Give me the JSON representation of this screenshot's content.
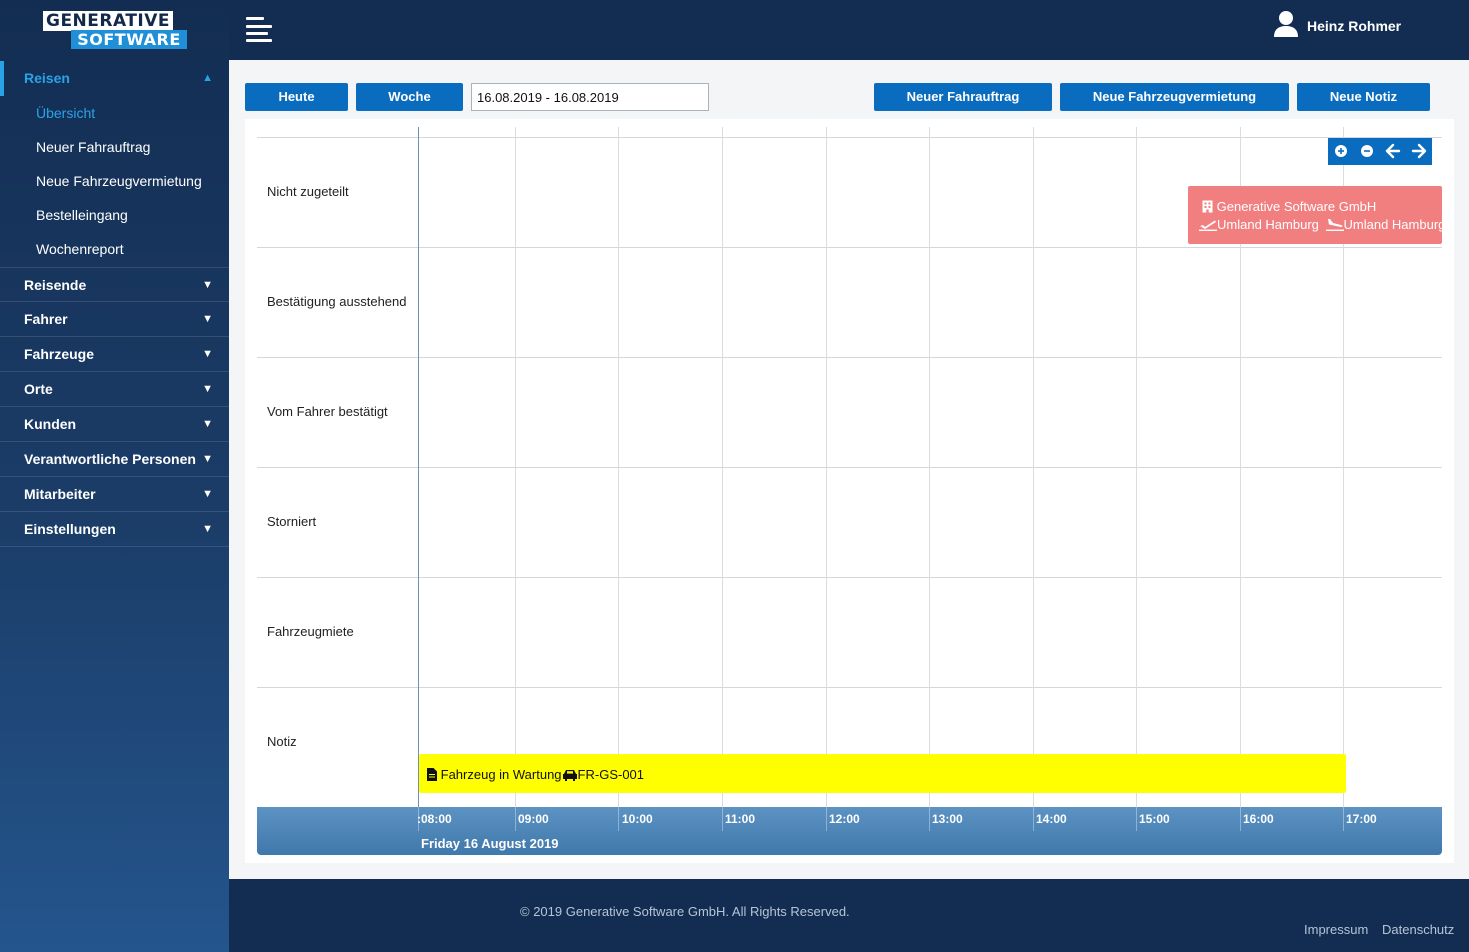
{
  "logo": {
    "line1": "GENERATIVE",
    "line2": "SOFTWARE"
  },
  "user": {
    "name": "Heinz Rohmer",
    "icon": "user-icon"
  },
  "sidebar": {
    "reisen": {
      "label": "Reisen",
      "expanded": true,
      "items": [
        {
          "label": "Übersicht",
          "active": true
        },
        {
          "label": "Neuer Fahrauftrag"
        },
        {
          "label": "Neue Fahrzeugvermietung"
        },
        {
          "label": "Bestelleingang"
        },
        {
          "label": "Wochenreport"
        }
      ]
    },
    "groups": [
      "Reisende",
      "Fahrer",
      "Fahrzeuge",
      "Orte",
      "Kunden",
      "Verantwortliche Personen",
      "Mitarbeiter",
      "Einstellungen"
    ]
  },
  "toolbar": {
    "today": "Heute",
    "week": "Woche",
    "date_range": "16.08.2019 - 16.08.2019",
    "new_order": "Neuer Fahrauftrag",
    "new_rental": "Neue Fahrzeugvermietung",
    "new_note": "Neue Notiz"
  },
  "calendar": {
    "rows": [
      "Nicht zugeteilt",
      "Bestätigung ausstehend",
      "Vom Fahrer bestätigt",
      "Storniert",
      "Fahrzeugmiete",
      "Notiz"
    ],
    "hours": [
      ":08:00",
      "09:00",
      "10:00",
      "11:00",
      "12:00",
      "13:00",
      "14:00",
      "15:00",
      "16:00",
      "17:00"
    ],
    "day": "Friday 16 August 2019",
    "controls": [
      "zoom-in-icon",
      "zoom-out-icon",
      "arrow-left-icon",
      "arrow-right-icon"
    ],
    "events": {
      "red": {
        "company": "Generative Software GmbH",
        "from": "Umland Hamburg",
        "to": "Umland Hamburg",
        "color": "#f27f7f"
      },
      "yellow": {
        "label": "Fahrzeug in Wartung",
        "vehicle": "FR-GS-001",
        "color": "#ffff00"
      }
    }
  },
  "footer": {
    "copyright": "© 2019 Generative Software GmbH. All Rights Reserved.",
    "impressum": "Impressum",
    "datenschutz": "Datenschutz"
  },
  "colors": {
    "accent": "#29a3e8",
    "button": "#0a6cbf",
    "navy": "#132d52"
  }
}
